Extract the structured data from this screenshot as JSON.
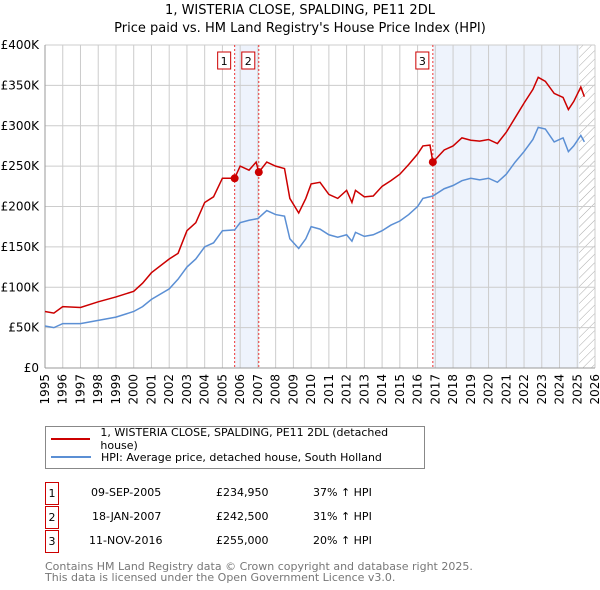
{
  "chart_data": {
    "type": "line",
    "title": "1, WISTERIA CLOSE, SPALDING, PE11 2DL",
    "subtitle": "Price paid vs. HM Land Registry's House Price Index (HPI)",
    "xlim": [
      1995,
      2026
    ],
    "ylim": [
      0,
      400000
    ],
    "x_ticks": [
      "1995",
      "1996",
      "1997",
      "1998",
      "1999",
      "2000",
      "2001",
      "2002",
      "2003",
      "2004",
      "2005",
      "2006",
      "2007",
      "2008",
      "2009",
      "2010",
      "2011",
      "2012",
      "2013",
      "2014",
      "2015",
      "2016",
      "2017",
      "2018",
      "2019",
      "2020",
      "2021",
      "2022",
      "2023",
      "2024",
      "2025",
      "2026"
    ],
    "y_ticks": [
      {
        "v": 0,
        "l": "£0"
      },
      {
        "v": 50000,
        "l": "£50K"
      },
      {
        "v": 100000,
        "l": "£100K"
      },
      {
        "v": 150000,
        "l": "£150K"
      },
      {
        "v": 200000,
        "l": "£200K"
      },
      {
        "v": 250000,
        "l": "£250K"
      },
      {
        "v": 300000,
        "l": "£300K"
      },
      {
        "v": 350000,
        "l": "£350K"
      },
      {
        "v": 400000,
        "l": "£400K"
      }
    ],
    "series": [
      {
        "name": "1, WISTERIA CLOSE, SPALDING, PE11 2DL (detached house)",
        "color": "#cc0000",
        "x": [
          1995,
          1995.5,
          1996,
          1997,
          1998,
          1999,
          2000,
          2000.5,
          2001,
          2002,
          2002.5,
          2003,
          2003.5,
          2004,
          2004.5,
          2005,
          2005.69,
          2006,
          2006.5,
          2006.9,
          2007.05,
          2007.5,
          2008,
          2008.5,
          2008.8,
          2009.3,
          2009.7,
          2010,
          2010.5,
          2011,
          2011.5,
          2012,
          2012.3,
          2012.5,
          2013,
          2013.5,
          2014,
          2014.5,
          2015,
          2015.5,
          2016,
          2016.3,
          2016.7,
          2016.86,
          2017.5,
          2018,
          2018.5,
          2019,
          2019.5,
          2020,
          2020.5,
          2021,
          2021.5,
          2022,
          2022.5,
          2022.8,
          2023.2,
          2023.7,
          2024.2,
          2024.5,
          2024.8,
          2025.2,
          2025.4
        ],
        "y": [
          70,
          68,
          76,
          75,
          82,
          88,
          95,
          105,
          118,
          135,
          142,
          170,
          180,
          205,
          212,
          235,
          235,
          250,
          245,
          255,
          242.5,
          255,
          250,
          247,
          210,
          192,
          210,
          228,
          230,
          215,
          210,
          220,
          205,
          220,
          212,
          213,
          225,
          232,
          240,
          252,
          265,
          275,
          276,
          255,
          270,
          275,
          285,
          282,
          281,
          283,
          278,
          292,
          310,
          328,
          345,
          360,
          355,
          340,
          335,
          320,
          330,
          348,
          336
        ]
      },
      {
        "name": "HPI: Average price, detached house, South Holland",
        "color": "#5b8fd4",
        "x": [
          1995,
          1995.5,
          1996,
          1997,
          1998,
          1999,
          2000,
          2000.5,
          2001,
          2002,
          2002.5,
          2003,
          2003.5,
          2004,
          2004.5,
          2005,
          2005.69,
          2006,
          2006.5,
          2007,
          2007.5,
          2008,
          2008.5,
          2008.8,
          2009.3,
          2009.7,
          2010,
          2010.5,
          2011,
          2011.5,
          2012,
          2012.3,
          2012.5,
          2013,
          2013.5,
          2014,
          2014.5,
          2015,
          2015.5,
          2016,
          2016.3,
          2016.86,
          2017.5,
          2018,
          2018.5,
          2019,
          2019.5,
          2020,
          2020.5,
          2021,
          2021.5,
          2022,
          2022.5,
          2022.8,
          2023.2,
          2023.7,
          2024.2,
          2024.5,
          2024.8,
          2025.2,
          2025.4
        ],
        "y": [
          52,
          50,
          55,
          55,
          59,
          63,
          70,
          76,
          85,
          98,
          110,
          125,
          135,
          150,
          155,
          170,
          171,
          180,
          183,
          185,
          195,
          190,
          188,
          160,
          148,
          160,
          175,
          172,
          165,
          162,
          165,
          157,
          168,
          163,
          165,
          170,
          177,
          182,
          190,
          200,
          210,
          213,
          222,
          226,
          232,
          235,
          233,
          235,
          230,
          240,
          255,
          268,
          283,
          298,
          296,
          280,
          285,
          268,
          275,
          288,
          280
        ]
      }
    ],
    "sales": [
      {
        "id": "1",
        "x": 2005.69,
        "y": 234950
      },
      {
        "id": "2",
        "x": 2007.05,
        "y": 242500
      },
      {
        "id": "3",
        "x": 2016.86,
        "y": 255000
      }
    ],
    "shaded": [
      [
        2005.69,
        2007.05
      ],
      [
        2016.86,
        2025.1
      ]
    ],
    "forecast_hatch_from": 2025.1,
    "grid": true,
    "legend": "below"
  },
  "legend": [
    "1, WISTERIA CLOSE, SPALDING, PE11 2DL (detached house)",
    "HPI: Average price, detached house, South Holland"
  ],
  "transactions": [
    {
      "id": "1",
      "date": "09-SEP-2005",
      "price": "£234,950",
      "hpi": "37% ↑ HPI"
    },
    {
      "id": "2",
      "date": "18-JAN-2007",
      "price": "£242,500",
      "hpi": "31% ↑ HPI"
    },
    {
      "id": "3",
      "date": "11-NOV-2016",
      "price": "£255,000",
      "hpi": "20% ↑ HPI"
    }
  ],
  "footer": [
    "Contains HM Land Registry data © Crown copyright and database right 2025.",
    "This data is licensed under the Open Government Licence v3.0."
  ]
}
